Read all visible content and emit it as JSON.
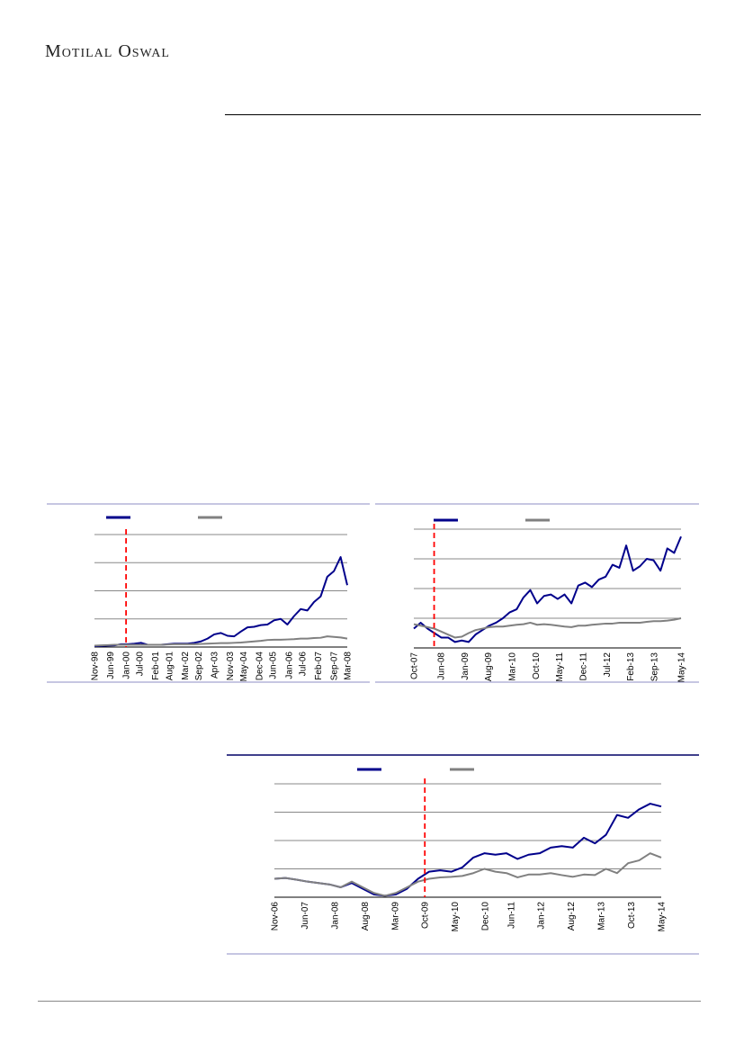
{
  "header": {
    "logo_text": "Motilal Oswal"
  },
  "colors": {
    "primary_series": "#00008b",
    "secondary_series": "#808080",
    "event_marker": "#ff0000",
    "frame_light": "#b3b3d9",
    "frame_dark": "#000066"
  },
  "chart_data": [
    {
      "type": "line",
      "title": "",
      "x_tick_labels": [
        "Nov-98",
        "Jun-99",
        "Jan-00",
        "Jul-00",
        "Feb-01",
        "Aug-01",
        "Mar-02",
        "Sep-02",
        "Apr-03",
        "Nov-03",
        "May-04",
        "Dec-04",
        "Jun-05",
        "Jan-06",
        "Jul-06",
        "Feb-07",
        "Sep-07",
        "Mar-08"
      ],
      "y_gridlines": 4,
      "y_tick_labels": [],
      "event_marker": "Jan-00",
      "legend": "top-left",
      "series": [
        {
          "color": "#00008b",
          "values": [
            0.03,
            0.04,
            0.05,
            0.06,
            0.1,
            0.1,
            0.12,
            0.15,
            0.08,
            0.08,
            0.08,
            0.1,
            0.12,
            0.12,
            0.12,
            0.15,
            0.2,
            0.3,
            0.45,
            0.5,
            0.4,
            0.38,
            0.55,
            0.7,
            0.72,
            0.78,
            0.8,
            0.95,
            1.0,
            0.8,
            1.1,
            1.35,
            1.3,
            1.6,
            1.8,
            2.5,
            2.7,
            3.2,
            2.2
          ]
        },
        {
          "color": "#808080",
          "values": [
            0.05,
            0.06,
            0.07,
            0.08,
            0.08,
            0.08,
            0.08,
            0.08,
            0.08,
            0.08,
            0.08,
            0.09,
            0.1,
            0.1,
            0.1,
            0.1,
            0.11,
            0.12,
            0.13,
            0.14,
            0.14,
            0.15,
            0.16,
            0.18,
            0.2,
            0.22,
            0.25,
            0.26,
            0.26,
            0.27,
            0.28,
            0.3,
            0.3,
            0.32,
            0.33,
            0.38,
            0.36,
            0.34,
            0.3
          ]
        }
      ]
    },
    {
      "type": "line",
      "title": "",
      "x_tick_labels": [
        "Oct-07",
        "Jun-08",
        "Jan-09",
        "Aug-09",
        "Mar-10",
        "Oct-10",
        "May-11",
        "Dec-11",
        "Jul-12",
        "Feb-13",
        "Sep-13",
        "May-14"
      ],
      "y_gridlines": 4,
      "y_tick_labels": [],
      "event_marker": "Apr-08",
      "legend": "top-left",
      "series": [
        {
          "color": "#00008b",
          "values": [
            0.65,
            0.85,
            0.65,
            0.5,
            0.35,
            0.35,
            0.2,
            0.25,
            0.2,
            0.45,
            0.6,
            0.75,
            0.85,
            1.0,
            1.2,
            1.3,
            1.7,
            1.95,
            1.5,
            1.75,
            1.8,
            1.65,
            1.8,
            1.5,
            2.1,
            2.2,
            2.05,
            2.3,
            2.4,
            2.8,
            2.7,
            3.45,
            2.6,
            2.75,
            3.0,
            2.95,
            2.6,
            3.35,
            3.2,
            3.75
          ]
        },
        {
          "color": "#808080",
          "values": [
            0.8,
            0.75,
            0.7,
            0.65,
            0.55,
            0.45,
            0.35,
            0.38,
            0.5,
            0.6,
            0.65,
            0.7,
            0.72,
            0.72,
            0.75,
            0.78,
            0.8,
            0.85,
            0.78,
            0.8,
            0.78,
            0.75,
            0.72,
            0.7,
            0.75,
            0.75,
            0.78,
            0.8,
            0.82,
            0.82,
            0.85,
            0.85,
            0.85,
            0.85,
            0.88,
            0.9,
            0.9,
            0.92,
            0.95,
            1.0
          ]
        }
      ]
    },
    {
      "type": "line",
      "title": "",
      "x_tick_labels": [
        "Nov-06",
        "Jun-07",
        "Jan-08",
        "Aug-08",
        "Mar-09",
        "Oct-09",
        "May-10",
        "Dec-10",
        "Jun-11",
        "Jan-12",
        "Aug-12",
        "Mar-13",
        "Oct-13",
        "May-14"
      ],
      "y_gridlines": 4,
      "y_tick_labels": [],
      "event_marker": "Oct-09",
      "legend": "top-center",
      "series": [
        {
          "color": "#00008b",
          "values": [
            0.65,
            0.68,
            0.62,
            0.55,
            0.5,
            0.45,
            0.35,
            0.5,
            0.3,
            0.1,
            0.05,
            0.1,
            0.3,
            0.65,
            0.9,
            0.95,
            0.9,
            1.05,
            1.4,
            1.55,
            1.5,
            1.55,
            1.35,
            1.5,
            1.55,
            1.75,
            1.8,
            1.75,
            2.1,
            1.9,
            2.2,
            2.9,
            2.8,
            3.1,
            3.3,
            3.2
          ]
        },
        {
          "color": "#808080",
          "values": [
            0.65,
            0.68,
            0.62,
            0.55,
            0.5,
            0.45,
            0.35,
            0.55,
            0.35,
            0.15,
            0.05,
            0.15,
            0.35,
            0.55,
            0.65,
            0.7,
            0.72,
            0.75,
            0.85,
            1.0,
            0.9,
            0.85,
            0.7,
            0.8,
            0.8,
            0.85,
            0.78,
            0.72,
            0.8,
            0.78,
            1.0,
            0.85,
            1.2,
            1.3,
            1.55,
            1.4
          ]
        }
      ]
    }
  ]
}
